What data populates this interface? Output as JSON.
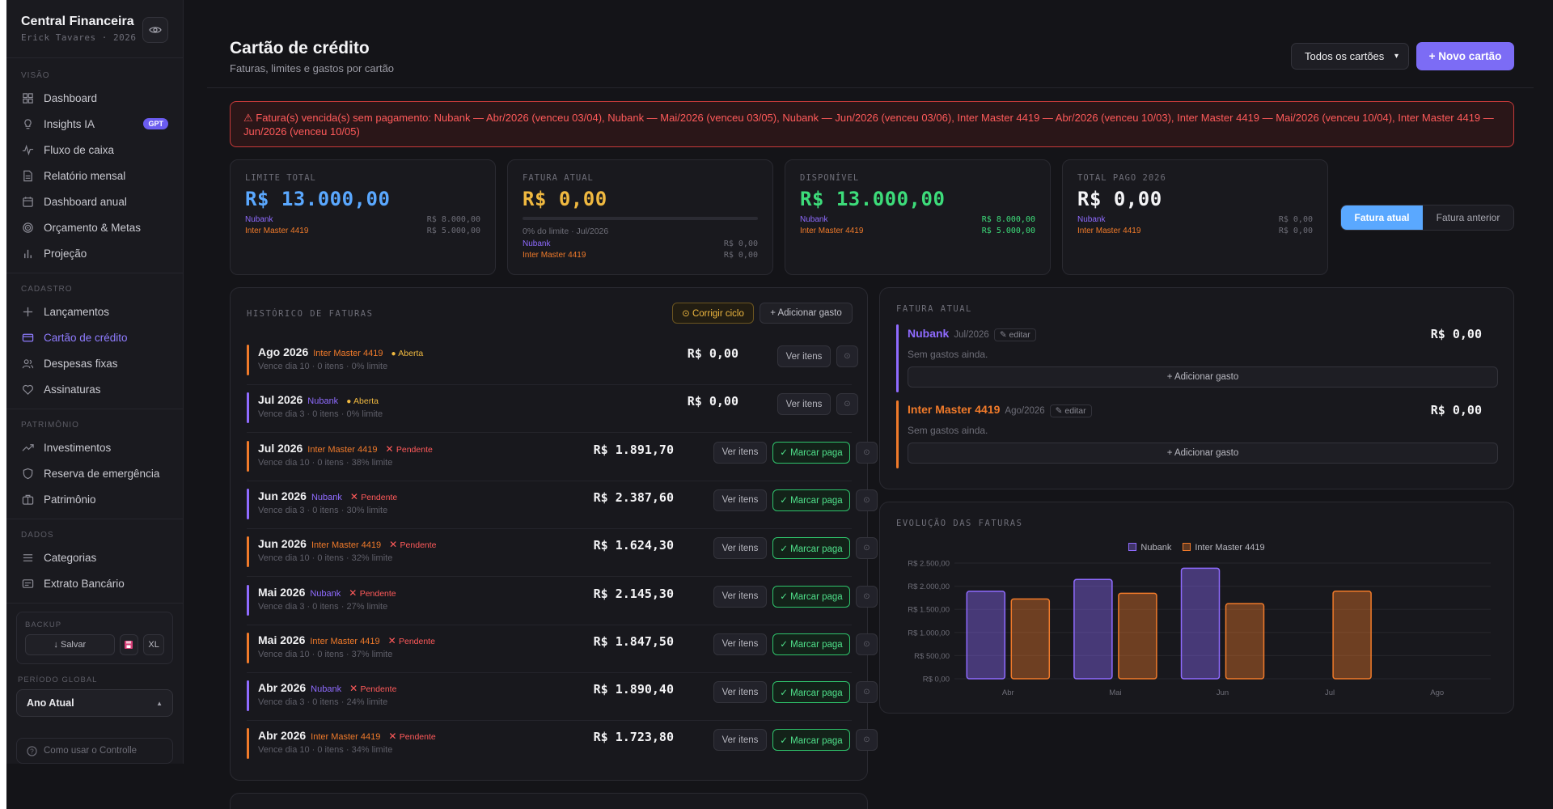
{
  "sidebar": {
    "title": "Central Financeira",
    "subtitle": "Erick Tavares · 2026",
    "sections": [
      {
        "label": "VISÃO",
        "items": [
          {
            "label": "Dashboard",
            "icon": "grid-icon"
          },
          {
            "label": "Insights IA",
            "icon": "bulb-icon",
            "badge": "GPT"
          },
          {
            "label": "Fluxo de caixa",
            "icon": "pulse-icon"
          },
          {
            "label": "Relatório mensal",
            "icon": "document-icon"
          },
          {
            "label": "Dashboard anual",
            "icon": "calendar-icon"
          },
          {
            "label": "Orçamento & Metas",
            "icon": "target-icon"
          },
          {
            "label": "Projeção",
            "icon": "bars-icon"
          }
        ]
      },
      {
        "label": "CADASTRO",
        "items": [
          {
            "label": "Lançamentos",
            "icon": "plus-icon"
          },
          {
            "label": "Cartão de crédito",
            "icon": "card-icon",
            "active": true
          },
          {
            "label": "Despesas fixas",
            "icon": "users-icon"
          },
          {
            "label": "Assinaturas",
            "icon": "heart-icon"
          }
        ]
      },
      {
        "label": "PATRIMÔNIO",
        "items": [
          {
            "label": "Investimentos",
            "icon": "trend-icon"
          },
          {
            "label": "Reserva de emergência",
            "icon": "shield-icon"
          },
          {
            "label": "Patrimônio",
            "icon": "briefcase-icon"
          }
        ]
      },
      {
        "label": "DADOS",
        "items": [
          {
            "label": "Categorias",
            "icon": "list-icon"
          },
          {
            "label": "Extrato Bancário",
            "icon": "statement-icon"
          }
        ]
      }
    ],
    "backup": {
      "label": "BACKUP",
      "save": "↓ Salvar",
      "xl": "XL"
    },
    "periodo": {
      "label": "PERÍODO GLOBAL",
      "value": "Ano Atual"
    },
    "help": "Como usar o Controlle"
  },
  "header": {
    "title": "Cartão de crédito",
    "subtitle": "Faturas, limites e gastos por cartão",
    "select": "Todos os cartões",
    "new_card": "+ Novo cartão"
  },
  "alert": "⚠ Fatura(s) vencida(s) sem pagamento: Nubank — Abr/2026 (venceu 03/04), Nubank — Mai/2026 (venceu 03/05), Nubank — Jun/2026 (venceu 03/06), Inter Master 4419 — Abr/2026 (venceu 10/03), Inter Master 4419 — Mai/2026 (venceu 10/04), Inter Master 4419 — Jun/2026 (venceu 10/05)",
  "kpis": [
    {
      "label": "LIMITE TOTAL",
      "value": "R$ 13.000,00",
      "color": "#5aa8ff",
      "rows": [
        {
          "card": "Nubank",
          "amt": "R$ 8.000,00"
        },
        {
          "card": "Inter Master 4419",
          "amt": "R$ 5.000,00"
        }
      ]
    },
    {
      "label": "FATURA ATUAL",
      "value": "R$ 0,00",
      "color": "#f0b940",
      "note": "0% do limite · Jul/2026",
      "progress": 0,
      "rows": [
        {
          "card": "Nubank",
          "amt": "R$ 0,00"
        },
        {
          "card": "Inter Master 4419",
          "amt": "R$ 0,00"
        }
      ]
    },
    {
      "label": "DISPONÍVEL",
      "value": "R$ 13.000,00",
      "color": "#3ddc7a",
      "rows": [
        {
          "card": "Nubank",
          "amt": "R$ 8.000,00"
        },
        {
          "card": "Inter Master 4419",
          "amt": "R$ 5.000,00"
        }
      ]
    },
    {
      "label": "TOTAL PAGO 2026",
      "value": "R$ 0,00",
      "color": "#f4f4f6",
      "rows": [
        {
          "card": "Nubank",
          "amt": "R$ 0,00"
        },
        {
          "card": "Inter Master 4419",
          "amt": "R$ 0,00"
        }
      ]
    }
  ],
  "toggle": {
    "current": "Fatura atual",
    "previous": "Fatura anterior"
  },
  "history": {
    "title": "HISTÓRICO DE FATURAS",
    "fix_cycle": "⊙ Corrigir ciclo",
    "add_expense": "+ Adicionar gasto",
    "view_items": "Ver itens",
    "mark_paid": "✓ Marcar paga",
    "rows": [
      {
        "month": "Ago 2026",
        "card": "Inter Master 4419",
        "type": "inter",
        "status": "Aberta",
        "status_type": "open",
        "sub": "Vence dia 10 · 0 itens · 0% limite",
        "amount": "R$ 0,00"
      },
      {
        "month": "Jul 2026",
        "card": "Nubank",
        "type": "nubank",
        "status": "Aberta",
        "status_type": "open",
        "sub": "Vence dia 3 · 0 itens · 0% limite",
        "amount": "R$ 0,00"
      },
      {
        "month": "Jul 2026",
        "card": "Inter Master 4419",
        "type": "inter",
        "status": "Pendente",
        "status_type": "pend",
        "sub": "Vence dia 10 · 0 itens · 38% limite",
        "amount": "R$ 1.891,70"
      },
      {
        "month": "Jun 2026",
        "card": "Nubank",
        "type": "nubank",
        "status": "Pendente",
        "status_type": "pend",
        "sub": "Vence dia 3 · 0 itens · 30% limite",
        "amount": "R$ 2.387,60"
      },
      {
        "month": "Jun 2026",
        "card": "Inter Master 4419",
        "type": "inter",
        "status": "Pendente",
        "status_type": "pend",
        "sub": "Vence dia 10 · 0 itens · 32% limite",
        "amount": "R$ 1.624,30"
      },
      {
        "month": "Mai 2026",
        "card": "Nubank",
        "type": "nubank",
        "status": "Pendente",
        "status_type": "pend",
        "sub": "Vence dia 3 · 0 itens · 27% limite",
        "amount": "R$ 2.145,30"
      },
      {
        "month": "Mai 2026",
        "card": "Inter Master 4419",
        "type": "inter",
        "status": "Pendente",
        "status_type": "pend",
        "sub": "Vence dia 10 · 0 itens · 37% limite",
        "amount": "R$ 1.847,50"
      },
      {
        "month": "Abr 2026",
        "card": "Nubank",
        "type": "nubank",
        "status": "Pendente",
        "status_type": "pend",
        "sub": "Vence dia 3 · 0 itens · 24% limite",
        "amount": "R$ 1.890,40"
      },
      {
        "month": "Abr 2026",
        "card": "Inter Master 4419",
        "type": "inter",
        "status": "Pendente",
        "status_type": "pend",
        "sub": "Vence dia 10 · 0 itens · 34% limite",
        "amount": "R$ 1.723,80"
      }
    ]
  },
  "current_invoice": {
    "title": "FATURA ATUAL",
    "edit": "✎ editar",
    "empty": "Sem gastos ainda.",
    "add": "+ Adicionar gasto",
    "cards": [
      {
        "name": "Nubank",
        "type": "nubank",
        "period": "Jul/2026",
        "amount": "R$ 0,00"
      },
      {
        "name": "Inter Master 4419",
        "type": "inter",
        "period": "Ago/2026",
        "amount": "R$ 0,00"
      }
    ]
  },
  "chart_title": "EVOLUÇÃO DAS FATURAS",
  "chart_data": {
    "type": "bar",
    "categories": [
      "Abr",
      "Mai",
      "Jun",
      "Jul",
      "Ago"
    ],
    "series": [
      {
        "name": "Nubank",
        "color": "#8f6bff",
        "values": [
          1890.4,
          2145.3,
          2387.6,
          0,
          0
        ]
      },
      {
        "name": "Inter Master 4419",
        "color": "#f07a2a",
        "values": [
          1723.8,
          1847.5,
          1624.3,
          1891.7,
          0
        ]
      }
    ],
    "yticks": [
      "R$ 0,00",
      "R$ 500,00",
      "R$ 1.000,00",
      "R$ 1.500,00",
      "R$ 2.000,00",
      "R$ 2.500,00"
    ],
    "ylim": [
      0,
      2500
    ],
    "legend": "top-center",
    "grid": true
  }
}
